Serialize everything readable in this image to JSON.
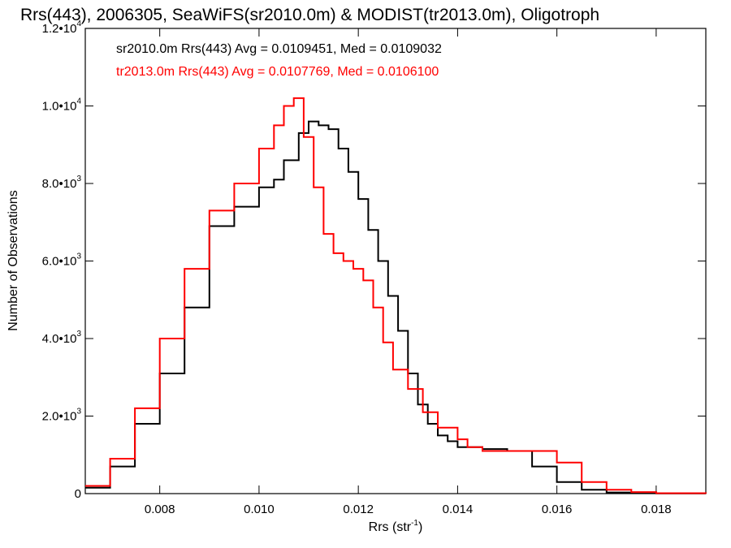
{
  "chart_data": {
    "type": "line",
    "title": "Rrs(443), 2006305, SeaWiFS(sr2010.0m) & MODIST(tr2013.0m), Oligotroph",
    "xlabel": "Rrs (str",
    "xlabel_sup": "-1",
    "xlabel_end": ")",
    "ylabel": "Number of Observations",
    "xlim": [
      0.0065,
      0.019
    ],
    "ylim": [
      0,
      12000
    ],
    "grid": false,
    "x_ticks": [
      {
        "value": 0.008,
        "label": "0.008"
      },
      {
        "value": 0.01,
        "label": "0.010"
      },
      {
        "value": 0.012,
        "label": "0.012"
      },
      {
        "value": 0.014,
        "label": "0.014"
      },
      {
        "value": 0.016,
        "label": "0.016"
      },
      {
        "value": 0.018,
        "label": "0.018"
      }
    ],
    "y_ticks": [
      {
        "value": 0,
        "mant": "0",
        "exp": ""
      },
      {
        "value": 2000,
        "mant": "2.0•10",
        "exp": "3"
      },
      {
        "value": 4000,
        "mant": "4.0•10",
        "exp": "3"
      },
      {
        "value": 6000,
        "mant": "6.0•10",
        "exp": "3"
      },
      {
        "value": 8000,
        "mant": "8.0•10",
        "exp": "3"
      },
      {
        "value": 10000,
        "mant": "1.0•10",
        "exp": "4"
      },
      {
        "value": 12000,
        "mant": "1.2•10",
        "exp": "4"
      }
    ],
    "series": [
      {
        "name": "sr2010.0m Rrs(443) Avg = 0.0109451, Med = 0.0109032",
        "color": "#000000",
        "x": [
          0.0065,
          0.007,
          0.0075,
          0.008,
          0.0085,
          0.009,
          0.0095,
          0.01,
          0.0103,
          0.0105,
          0.0108,
          0.011,
          0.0112,
          0.0114,
          0.0116,
          0.0118,
          0.012,
          0.0122,
          0.0124,
          0.0126,
          0.0128,
          0.013,
          0.0132,
          0.0134,
          0.0136,
          0.0138,
          0.014,
          0.0142,
          0.0145,
          0.015,
          0.0155,
          0.016,
          0.0165,
          0.017,
          0.0175,
          0.018,
          0.019
        ],
        "y": [
          150,
          700,
          1800,
          3100,
          4800,
          6900,
          7400,
          7900,
          8100,
          8600,
          9300,
          9600,
          9500,
          9400,
          8900,
          8300,
          7600,
          6800,
          6000,
          5100,
          4200,
          3100,
          2300,
          1800,
          1500,
          1350,
          1200,
          1200,
          1150,
          1100,
          700,
          300,
          100,
          30,
          10,
          5,
          0
        ]
      },
      {
        "name": "tr2013.0m Rrs(443) Avg = 0.0107769, Med = 0.0106100",
        "color": "#ff0000",
        "x": [
          0.0065,
          0.007,
          0.0075,
          0.008,
          0.0085,
          0.009,
          0.0095,
          0.01,
          0.0103,
          0.0105,
          0.0107,
          0.0109,
          0.0111,
          0.0113,
          0.0115,
          0.0117,
          0.0119,
          0.0121,
          0.0123,
          0.0125,
          0.0127,
          0.013,
          0.0133,
          0.0136,
          0.014,
          0.0142,
          0.0145,
          0.015,
          0.0155,
          0.016,
          0.0165,
          0.017,
          0.0175,
          0.018,
          0.019
        ],
        "y": [
          200,
          900,
          2200,
          4000,
          5800,
          7300,
          8000,
          8900,
          9500,
          10000,
          10200,
          9200,
          7900,
          6700,
          6200,
          6000,
          5800,
          5500,
          4800,
          3900,
          3200,
          2700,
          2100,
          1700,
          1400,
          1200,
          1100,
          1100,
          1100,
          800,
          300,
          100,
          40,
          10,
          0
        ]
      }
    ]
  }
}
